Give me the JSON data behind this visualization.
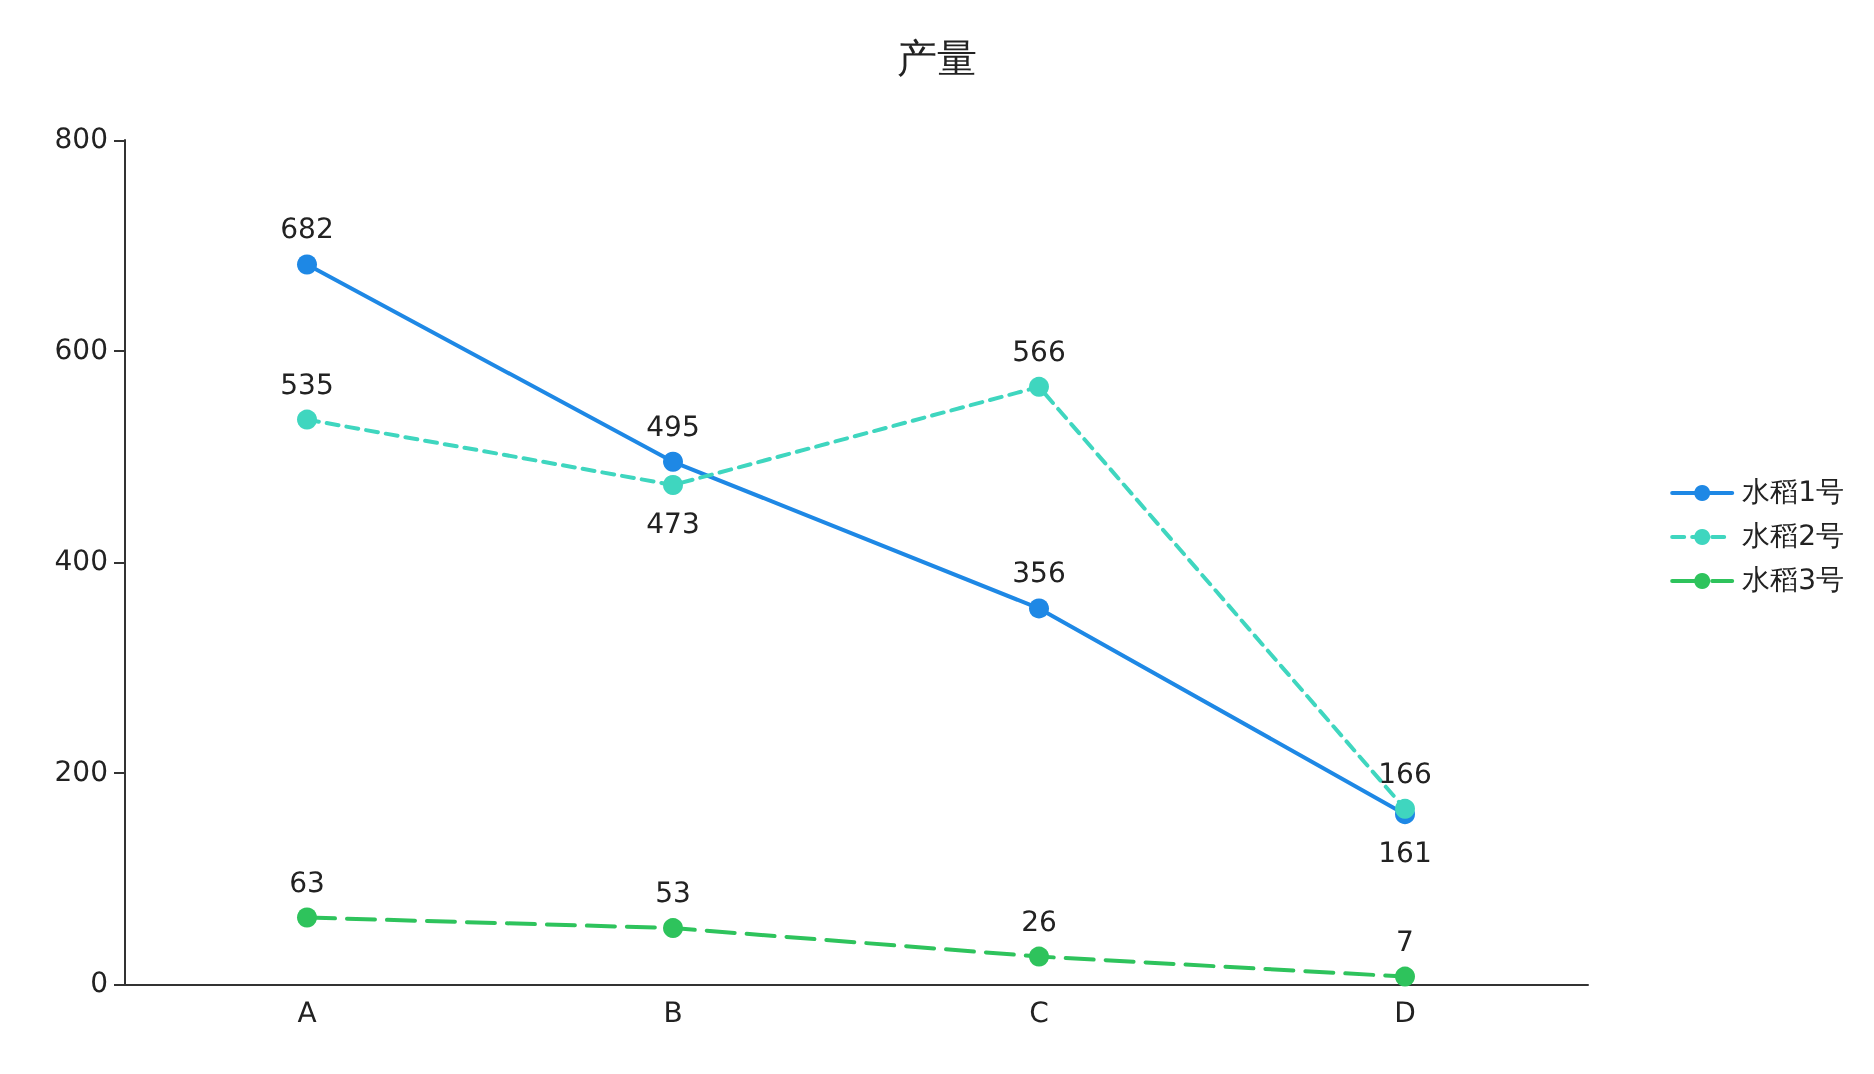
{
  "chart_data": {
    "type": "line",
    "title": "产量",
    "categories": [
      "A",
      "B",
      "C",
      "D"
    ],
    "series": [
      {
        "name": "水稻1号",
        "color": "#1e88e5",
        "values": [
          682,
          495,
          356,
          161
        ],
        "line_style": "solid"
      },
      {
        "name": "水稻2号",
        "color": "#3fd6bf",
        "values": [
          535,
          473,
          566,
          166
        ],
        "line_style": "dashed"
      },
      {
        "name": "水稻3号",
        "color": "#2ec35c",
        "values": [
          63,
          53,
          26,
          7
        ],
        "line_style": "dashed"
      }
    ],
    "ylim": [
      0,
      800
    ],
    "yticks": [
      0,
      200,
      400,
      600,
      800
    ],
    "grid": false,
    "legend": "right",
    "marker": "circle",
    "data_labels": true
  }
}
